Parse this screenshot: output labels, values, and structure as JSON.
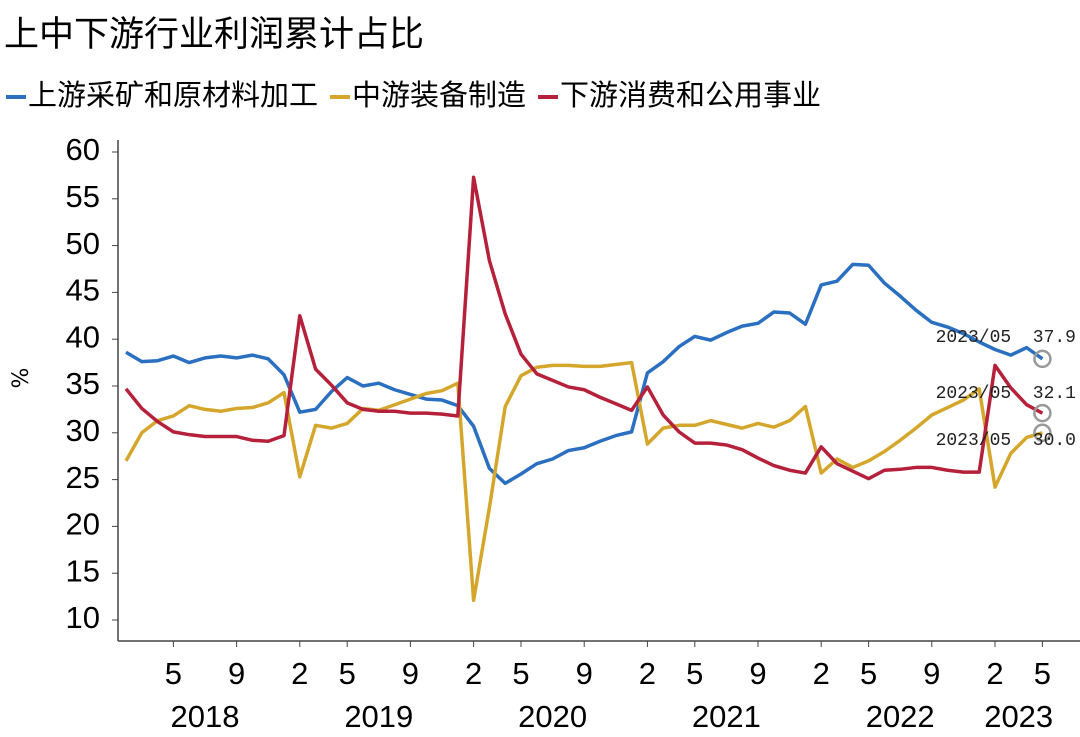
{
  "chart_data": {
    "type": "line",
    "title": "上中下游行业利润累计占比",
    "ylabel": "%",
    "categories": [
      null,
      null,
      null,
      "5",
      null,
      null,
      null,
      "9",
      null,
      null,
      null,
      "2",
      null,
      null,
      "5",
      null,
      null,
      null,
      "9",
      null,
      null,
      null,
      "2",
      null,
      null,
      "5",
      null,
      null,
      null,
      "9",
      null,
      null,
      null,
      "2",
      null,
      null,
      "5",
      null,
      null,
      null,
      "9",
      null,
      null,
      null,
      "2",
      null,
      null,
      "5",
      null,
      null,
      null,
      "9",
      null,
      null,
      null,
      "2",
      null,
      null,
      "5"
    ],
    "year_groups": [
      {
        "label": "2018",
        "count": 11
      },
      {
        "label": "2019",
        "count": 11
      },
      {
        "label": "2020",
        "count": 11
      },
      {
        "label": "2021",
        "count": 11
      },
      {
        "label": "2022",
        "count": 11
      },
      {
        "label": "2023",
        "count": 4
      }
    ],
    "series": [
      {
        "name": "上游采矿和原材料加工",
        "color": "#2a6fc0",
        "values": [
          38.6,
          37.6,
          37.7,
          38.2,
          37.5,
          38.0,
          38.2,
          38.0,
          38.3,
          37.9,
          36.2,
          32.2,
          32.5,
          34.4,
          35.9,
          35.0,
          35.3,
          34.6,
          34.1,
          33.6,
          33.5,
          32.9,
          30.7,
          26.2,
          24.6,
          25.6,
          26.7,
          27.2,
          28.1,
          28.4,
          29.1,
          29.7,
          30.1,
          36.4,
          37.6,
          39.2,
          40.3,
          39.9,
          40.7,
          41.4,
          41.7,
          42.9,
          42.8,
          41.6,
          45.8,
          46.2,
          48.0,
          47.9,
          46.0,
          44.6,
          43.1,
          41.8,
          41.3,
          40.6,
          39.7,
          38.9,
          38.3,
          39.1,
          37.9
        ]
      },
      {
        "name": "中游装备制造",
        "color": "#d4a72c",
        "values": [
          27.0,
          30.0,
          31.3,
          31.8,
          32.9,
          32.5,
          32.3,
          32.6,
          32.7,
          33.2,
          34.3,
          25.3,
          30.8,
          30.5,
          31.0,
          32.6,
          32.4,
          33.0,
          33.6,
          34.2,
          34.5,
          35.3,
          12.1,
          22.0,
          32.8,
          36.1,
          37.0,
          37.2,
          37.2,
          37.1,
          37.1,
          37.3,
          37.5,
          28.8,
          30.5,
          30.8,
          30.8,
          31.3,
          30.9,
          30.5,
          31.0,
          30.6,
          31.3,
          32.8,
          25.7,
          27.2,
          26.3,
          27.0,
          28.0,
          29.2,
          30.5,
          31.9,
          32.7,
          33.5,
          34.7,
          24.2,
          27.8,
          29.5,
          30.0
        ]
      },
      {
        "name": "下游消费和公用事业",
        "color": "#b5203a",
        "values": [
          34.7,
          32.6,
          31.2,
          30.1,
          29.8,
          29.6,
          29.6,
          29.6,
          29.2,
          29.1,
          29.7,
          42.5,
          36.8,
          35.1,
          33.2,
          32.5,
          32.3,
          32.3,
          32.1,
          32.1,
          32.0,
          31.8,
          57.3,
          48.4,
          42.7,
          38.4,
          36.3,
          35.6,
          34.9,
          34.6,
          33.8,
          33.1,
          32.4,
          34.9,
          31.9,
          30.1,
          28.9,
          28.9,
          28.7,
          28.2,
          27.3,
          26.5,
          26.0,
          25.7,
          28.5,
          26.7,
          25.9,
          25.1,
          26.0,
          26.1,
          26.3,
          26.3,
          26.0,
          25.8,
          25.8,
          37.2,
          34.8,
          33.0,
          32.1
        ]
      }
    ],
    "annotations": [
      {
        "text": "2023/05  37.9",
        "series": 0
      },
      {
        "text": "2023/05  32.1",
        "series": 2
      },
      {
        "text": "2023/05  30.0",
        "series": 1
      }
    ],
    "ylim": [
      8,
      61.5
    ],
    "yticks": [
      10,
      15,
      20,
      25,
      30,
      35,
      40,
      45,
      50,
      55,
      60
    ]
  }
}
